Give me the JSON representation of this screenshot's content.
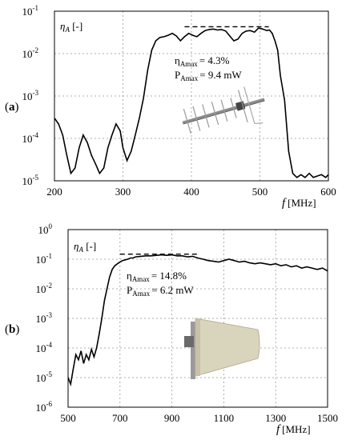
{
  "chart_data": [
    {
      "type": "line",
      "panel_label": [
        "(",
        "a",
        ")"
      ],
      "xlabel": {
        "var": "f",
        "unit": "[MHz]"
      },
      "ylabel": {
        "var": "η",
        "sub": "A",
        "unit": " [-]"
      },
      "xlim": [
        200,
        600
      ],
      "xticks": [
        200,
        300,
        400,
        500,
        600
      ],
      "ylim_log10": [
        -5,
        -1
      ],
      "yscale": "log",
      "yticks": [
        {
          "base": "10",
          "exp": "-5"
        },
        {
          "base": "10",
          "exp": "-4"
        },
        {
          "base": "10",
          "exp": "-3"
        },
        {
          "base": "10",
          "exp": "-2"
        },
        {
          "base": "10",
          "exp": "-1"
        }
      ],
      "grid": true,
      "annotations": [
        {
          "sym": "η",
          "sub": "Amax",
          "text": "= 4.3%"
        },
        {
          "sym": "P",
          "sub": "Amax",
          "text": "= 9.4 mW"
        }
      ],
      "max_marker": {
        "x": [
          390,
          513
        ],
        "y": 0.043
      },
      "device_icon": "yagi-antenna-icon",
      "series": [
        {
          "x": [
            200,
            206,
            212,
            218,
            224,
            230,
            236,
            242,
            248,
            254,
            260,
            266,
            272,
            278,
            284,
            290,
            296,
            300,
            306,
            312,
            318,
            324,
            330,
            336,
            342,
            348,
            354,
            360,
            366,
            372,
            378,
            384,
            390,
            396,
            402,
            408,
            414,
            420,
            426,
            432,
            438,
            444,
            450,
            456,
            462,
            468,
            474,
            480,
            486,
            492,
            498,
            504,
            510,
            514,
            518,
            522,
            526,
            530,
            536,
            542,
            548,
            554,
            560,
            566,
            572,
            578,
            584,
            590,
            596,
            600
          ],
          "y": [
            0.0003,
            0.00022,
            0.00012,
            4e-05,
            1.5e-05,
            2e-05,
            6e-05,
            0.00012,
            8e-05,
            4e-05,
            2.5e-05,
            1.5e-05,
            2e-05,
            6e-05,
            0.00012,
            0.00022,
            0.00015,
            6e-05,
            3e-05,
            5e-05,
            0.00012,
            0.0003,
            0.0009,
            0.004,
            0.012,
            0.02,
            0.024,
            0.025,
            0.027,
            0.03,
            0.026,
            0.02,
            0.025,
            0.03,
            0.027,
            0.025,
            0.03,
            0.035,
            0.037,
            0.038,
            0.036,
            0.037,
            0.034,
            0.026,
            0.02,
            0.022,
            0.03,
            0.034,
            0.035,
            0.032,
            0.04,
            0.038,
            0.035,
            0.036,
            0.03,
            0.02,
            0.012,
            0.003,
            0.0008,
            5e-05,
            1.5e-05,
            1.2e-05,
            1.4e-05,
            1.2e-05,
            1.5e-05,
            1.2e-05,
            1.3e-05,
            1.4e-05,
            1.2e-05,
            1.4e-05
          ]
        }
      ]
    },
    {
      "type": "line",
      "panel_label": [
        "(",
        "b",
        ")"
      ],
      "xlabel": {
        "var": "f",
        "unit": "[MHz]"
      },
      "ylabel": {
        "var": "η",
        "sub": "A",
        "unit": " [-]"
      },
      "xlim": [
        500,
        1500
      ],
      "xticks": [
        500,
        700,
        900,
        1100,
        1300,
        1500
      ],
      "ylim_log10": [
        -6,
        0
      ],
      "yscale": "log",
      "yticks": [
        {
          "base": "10",
          "exp": "-6"
        },
        {
          "base": "10",
          "exp": "-5"
        },
        {
          "base": "10",
          "exp": "-4"
        },
        {
          "base": "10",
          "exp": "-3"
        },
        {
          "base": "10",
          "exp": "-2"
        },
        {
          "base": "10",
          "exp": "-1"
        },
        {
          "base": "10",
          "exp": "0"
        }
      ],
      "grid": true,
      "annotations": [
        {
          "sym": "η",
          "sub": "Amax",
          "text": "= 14.8%"
        },
        {
          "sym": "P",
          "sub": "Amax",
          "text": "= 6.2 mW"
        }
      ],
      "max_marker": {
        "x": [
          700,
          1000
        ],
        "y": 0.148
      },
      "device_icon": "log-periodic-antenna-icon",
      "series": [
        {
          "x": [
            500,
            510,
            520,
            530,
            540,
            550,
            560,
            570,
            580,
            590,
            600,
            610,
            620,
            630,
            640,
            650,
            660,
            670,
            680,
            690,
            700,
            710,
            720,
            730,
            740,
            750,
            760,
            780,
            800,
            820,
            840,
            860,
            880,
            900,
            920,
            940,
            960,
            980,
            1000,
            1020,
            1040,
            1060,
            1080,
            1100,
            1120,
            1140,
            1160,
            1180,
            1200,
            1220,
            1240,
            1260,
            1280,
            1300,
            1320,
            1340,
            1360,
            1380,
            1400,
            1420,
            1440,
            1460,
            1480,
            1500
          ],
          "y": [
            1e-05,
            6e-06,
            2e-05,
            6e-05,
            4e-05,
            8e-05,
            3e-05,
            6e-05,
            4e-05,
            9e-05,
            5e-05,
            0.0001,
            0.0003,
            0.001,
            0.004,
            0.01,
            0.025,
            0.045,
            0.06,
            0.07,
            0.08,
            0.09,
            0.095,
            0.1,
            0.11,
            0.11,
            0.12,
            0.125,
            0.13,
            0.13,
            0.135,
            0.14,
            0.135,
            0.14,
            0.13,
            0.13,
            0.12,
            0.125,
            0.11,
            0.1,
            0.09,
            0.085,
            0.08,
            0.09,
            0.1,
            0.09,
            0.08,
            0.085,
            0.075,
            0.07,
            0.075,
            0.07,
            0.065,
            0.07,
            0.06,
            0.065,
            0.055,
            0.06,
            0.05,
            0.055,
            0.05,
            0.045,
            0.05,
            0.04
          ]
        }
      ]
    }
  ]
}
